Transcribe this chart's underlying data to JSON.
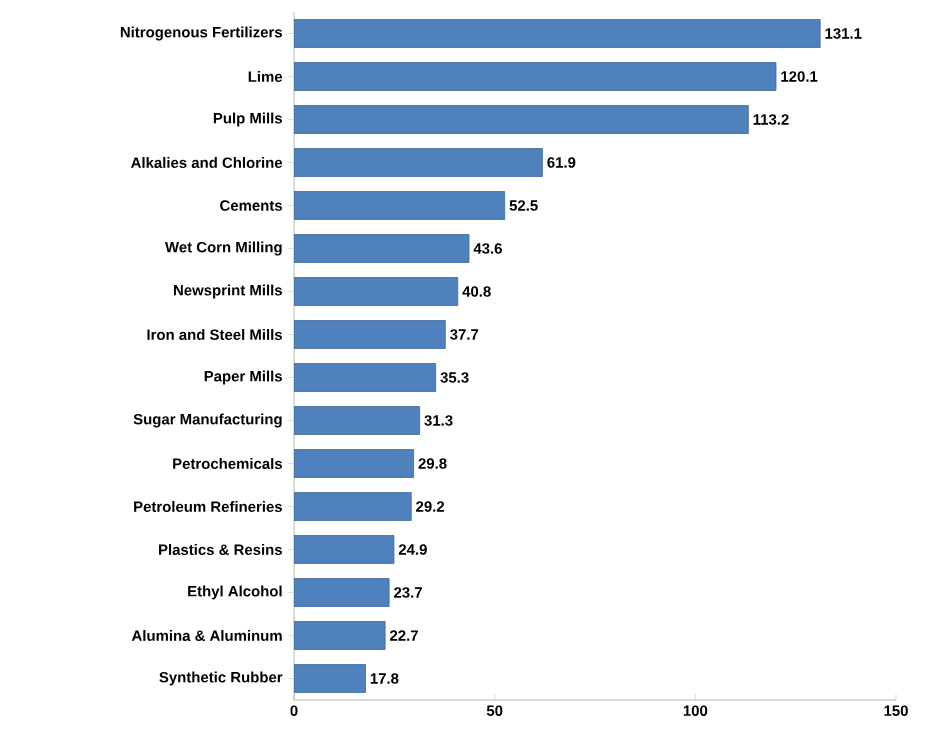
{
  "chart_data": {
    "type": "bar",
    "orientation": "horizontal",
    "categories": [
      "Nitrogenous Fertilizers",
      "Lime",
      "Pulp Mills",
      "Alkalies and Chlorine",
      "Cements",
      "Wet Corn Milling",
      "Newsprint Mills",
      "Iron and Steel Mills",
      "Paper Mills",
      "Sugar Manufacturing",
      "Petrochemicals",
      "Petroleum Refineries",
      "Plastics & Resins",
      "Ethyl Alcohol",
      "Alumina & Aluminum",
      "Synthetic Rubber"
    ],
    "values": [
      131.1,
      120.1,
      113.2,
      61.9,
      52.5,
      43.6,
      40.8,
      37.7,
      35.3,
      31.3,
      29.8,
      29.2,
      24.9,
      23.7,
      22.7,
      17.8
    ],
    "color": "#4f81bd",
    "xlim": [
      0,
      150
    ],
    "xticks": [
      0,
      50,
      100,
      150
    ],
    "data_labels": true
  }
}
